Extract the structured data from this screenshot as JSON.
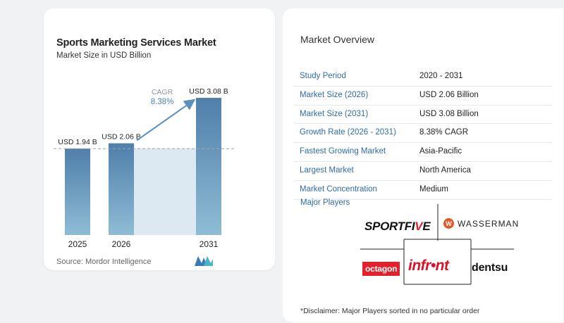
{
  "left_panel": {
    "source_text": "Source: Mordor Intelligence"
  },
  "chart_data": {
    "type": "bar",
    "title": "Sports Marketing Services Market",
    "subtitle": "Market Size in USD Billion",
    "categories": [
      "2025",
      "2026",
      "2031"
    ],
    "values": [
      1.94,
      2.06,
      3.08
    ],
    "value_labels": [
      "USD 1.94 B",
      "USD 2.06 B",
      "USD 3.08 B"
    ],
    "annotation": {
      "label": "CAGR",
      "value": "8.38%"
    },
    "reference_line_value": 1.94,
    "colors": {
      "bar": "#6d9bc3",
      "bar_dark": "#4f7fab",
      "bar_light": "#8fbcd4",
      "band": "#dce8f2",
      "arrow": "#5b8fbd"
    }
  },
  "right_panel": {
    "title": "Market Overview",
    "rows": [
      {
        "label": "Study Period",
        "value": "2020 - 2031"
      },
      {
        "label": "Market Size (2026)",
        "value": "USD 2.06 Billion"
      },
      {
        "label": "Market Size (2031)",
        "value": "USD 3.08 Billion"
      },
      {
        "label": "Growth Rate (2026 - 2031)",
        "value": "8.38% CAGR"
      },
      {
        "label": "Fastest Growing Market",
        "value": "Asia-Pacific"
      },
      {
        "label": "Largest Market",
        "value": "North America"
      },
      {
        "label": "Market Concentration",
        "value": "Medium"
      }
    ],
    "players_title": "Major Players",
    "players": {
      "sportfive_a": "SPORTFI",
      "sportfive_b": "V",
      "sportfive_c": "E",
      "wasserman_mark": "W",
      "wasserman": "WASSERMAN",
      "octagon": "octagon",
      "infront": "infr•nt",
      "dentsu": "dentsu"
    },
    "disclaimer": "*Disclaimer: Major Players sorted in no particular order"
  }
}
